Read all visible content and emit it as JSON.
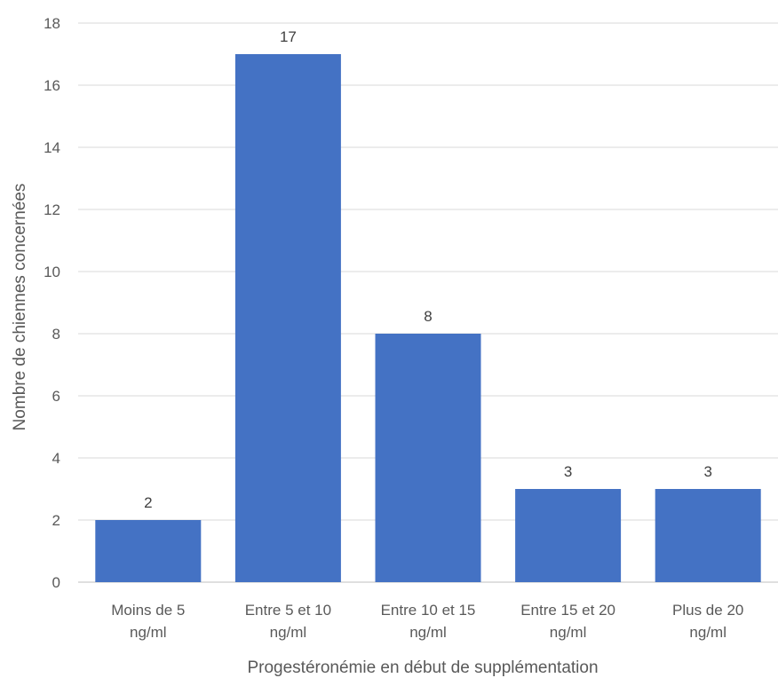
{
  "chart_data": {
    "type": "bar",
    "categories": [
      [
        "Moins de 5",
        "ng/ml"
      ],
      [
        "Entre 5 et 10",
        "ng/ml"
      ],
      [
        "Entre 10 et 15",
        "ng/ml"
      ],
      [
        "Entre 15 et 20",
        "ng/ml"
      ],
      [
        "Plus de 20",
        "ng/ml"
      ]
    ],
    "values": [
      2,
      17,
      8,
      3,
      3
    ],
    "data_labels": [
      "2",
      "17",
      "8",
      "3",
      "3"
    ],
    "title": "",
    "xlabel": "Progestéronémie en début de supplémentation",
    "ylabel": "Nombre de chiennes concernées",
    "ylim": [
      0,
      18
    ],
    "yticks": [
      0,
      2,
      4,
      6,
      8,
      10,
      12,
      14,
      16,
      18
    ],
    "grid": true,
    "legend": "none",
    "bar_color": "#4472C4"
  }
}
